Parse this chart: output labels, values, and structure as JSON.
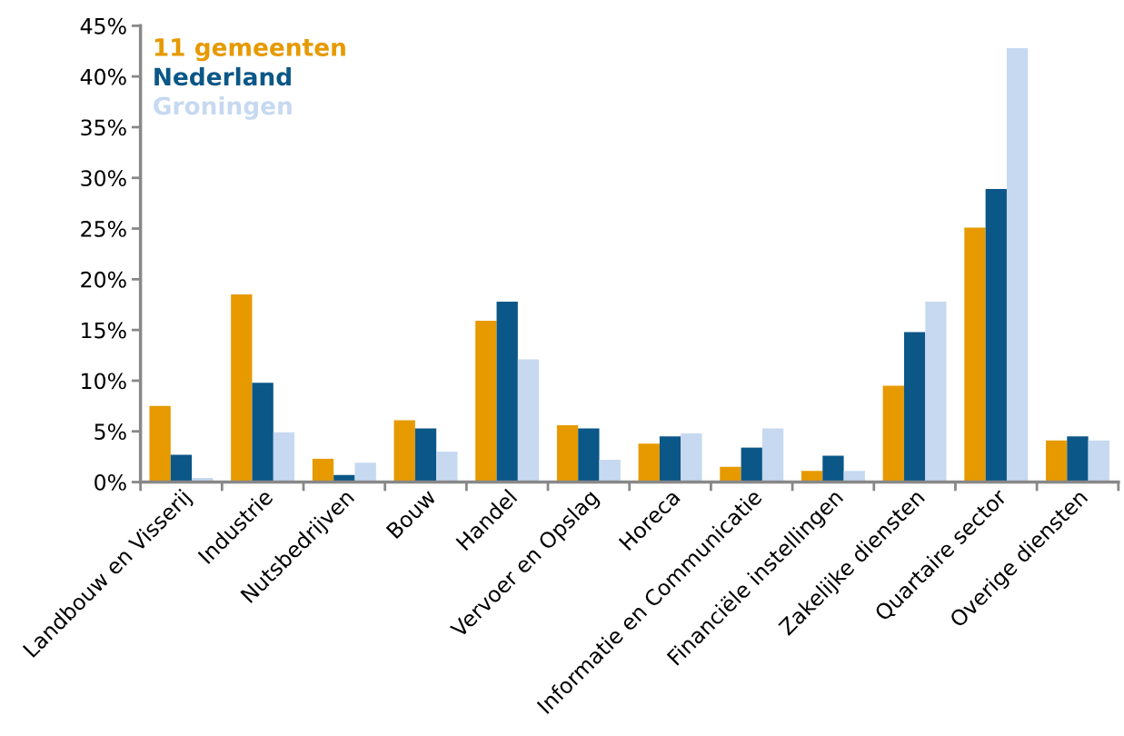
{
  "chart_data": {
    "type": "bar",
    "categories": [
      "Landbouw en Visserij",
      "Industrie",
      "Nutsbedrijven",
      "Bouw",
      "Handel",
      "Vervoer en Opslag",
      "Horeca",
      "Informatie en Communicatie",
      "Financiële instellingen",
      "Zakelijke diensten",
      "Quartaire sector",
      "Overige diensten"
    ],
    "series": [
      {
        "name": "11 gemeenten",
        "color": "#e69a00",
        "values": [
          7.5,
          18.5,
          2.3,
          6.1,
          15.9,
          5.6,
          3.8,
          1.5,
          1.1,
          9.5,
          25.1,
          4.1
        ]
      },
      {
        "name": "Nederland",
        "color": "#0b5787",
        "values": [
          2.7,
          9.8,
          0.7,
          5.3,
          17.8,
          5.3,
          4.5,
          3.4,
          2.6,
          14.8,
          28.9,
          4.5
        ]
      },
      {
        "name": "Groningen",
        "color": "#c6d9f0",
        "values": [
          0.4,
          4.9,
          1.9,
          3.0,
          12.1,
          2.2,
          4.8,
          5.3,
          1.1,
          17.8,
          42.8,
          4.1
        ]
      }
    ],
    "ylim": [
      0,
      45
    ],
    "yticks": [
      {
        "value": 0,
        "label": "0%"
      },
      {
        "value": 5,
        "label": "5%"
      },
      {
        "value": 10,
        "label": "10%"
      },
      {
        "value": 15,
        "label": "15%"
      },
      {
        "value": 20,
        "label": "20%"
      },
      {
        "value": 25,
        "label": "25%"
      },
      {
        "value": 30,
        "label": "30%"
      },
      {
        "value": 35,
        "label": "35%"
      },
      {
        "value": 40,
        "label": "40%"
      },
      {
        "value": 45,
        "label": "45%"
      }
    ],
    "grid": false,
    "legend": "top left"
  }
}
